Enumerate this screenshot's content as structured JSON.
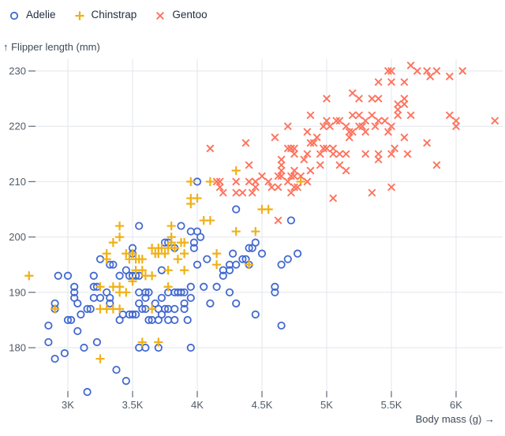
{
  "chart_data": {
    "type": "scatter",
    "title": "",
    "xlabel": "Body mass (g) →",
    "ylabel": "↑ Flipper length (mm)",
    "grid": true,
    "legend_position": "top-left",
    "xlim": [
      2700,
      6350
    ],
    "ylim": [
      172,
      232
    ],
    "x_tick_values": [
      3000,
      3500,
      4000,
      4500,
      5000,
      5500,
      6000
    ],
    "x_tick_labels": [
      "3K",
      "3.5K",
      "4K",
      "4.5K",
      "5K",
      "5.5K",
      "6K"
    ],
    "y_tick_values": [
      180,
      190,
      200,
      210,
      220,
      230
    ],
    "y_tick_labels": [
      "180",
      "190",
      "200",
      "210",
      "220",
      "230"
    ],
    "series": [
      {
        "name": "Adelie",
        "marker": "circle",
        "color": "#4269d0",
        "points": [
          [
            2850,
            184
          ],
          [
            2850,
            181
          ],
          [
            2900,
            188
          ],
          [
            2900,
            187
          ],
          [
            2900,
            178
          ],
          [
            2925,
            193
          ],
          [
            2975,
            179
          ],
          [
            3000,
            193
          ],
          [
            3000,
            185
          ],
          [
            3025,
            185
          ],
          [
            3050,
            191
          ],
          [
            3050,
            190
          ],
          [
            3050,
            189
          ],
          [
            3075,
            188
          ],
          [
            3075,
            183
          ],
          [
            3100,
            186
          ],
          [
            3125,
            180
          ],
          [
            3150,
            187
          ],
          [
            3150,
            172
          ],
          [
            3175,
            187
          ],
          [
            3200,
            193
          ],
          [
            3200,
            191
          ],
          [
            3200,
            189
          ],
          [
            3225,
            191
          ],
          [
            3225,
            181
          ],
          [
            3250,
            196
          ],
          [
            3250,
            189
          ],
          [
            3300,
            190
          ],
          [
            3325,
            195
          ],
          [
            3325,
            189
          ],
          [
            3325,
            188
          ],
          [
            3350,
            195
          ],
          [
            3375,
            176
          ],
          [
            3400,
            193
          ],
          [
            3400,
            185
          ],
          [
            3425,
            186
          ],
          [
            3450,
            194
          ],
          [
            3450,
            174
          ],
          [
            3475,
            193
          ],
          [
            3475,
            186
          ],
          [
            3500,
            198
          ],
          [
            3500,
            197
          ],
          [
            3500,
            193
          ],
          [
            3500,
            186
          ],
          [
            3525,
            193
          ],
          [
            3525,
            186
          ],
          [
            3550,
            202
          ],
          [
            3550,
            193
          ],
          [
            3550,
            190
          ],
          [
            3550,
            188
          ],
          [
            3550,
            180
          ],
          [
            3575,
            187
          ],
          [
            3600,
            190
          ],
          [
            3600,
            189
          ],
          [
            3600,
            187
          ],
          [
            3600,
            180
          ],
          [
            3625,
            190
          ],
          [
            3625,
            185
          ],
          [
            3650,
            185
          ],
          [
            3675,
            188
          ],
          [
            3700,
            187
          ],
          [
            3700,
            185
          ],
          [
            3700,
            180
          ],
          [
            3725,
            194
          ],
          [
            3725,
            189
          ],
          [
            3725,
            186
          ],
          [
            3750,
            199
          ],
          [
            3750,
            187
          ],
          [
            3775,
            199
          ],
          [
            3775,
            190
          ],
          [
            3775,
            187
          ],
          [
            3775,
            185
          ],
          [
            3825,
            198
          ],
          [
            3825,
            190
          ],
          [
            3825,
            187
          ],
          [
            3825,
            185
          ],
          [
            3850,
            190
          ],
          [
            3875,
            202
          ],
          [
            3875,
            190
          ],
          [
            3900,
            190
          ],
          [
            3900,
            188
          ],
          [
            3900,
            187
          ],
          [
            3925,
            185
          ],
          [
            3950,
            201
          ],
          [
            3950,
            191
          ],
          [
            3950,
            189
          ],
          [
            3950,
            180
          ],
          [
            3975,
            199
          ],
          [
            3975,
            198
          ],
          [
            4000,
            210
          ],
          [
            4000,
            201
          ],
          [
            4000,
            195
          ],
          [
            4025,
            200
          ],
          [
            4050,
            191
          ],
          [
            4075,
            196
          ],
          [
            4100,
            188
          ],
          [
            4150,
            191
          ],
          [
            4200,
            194
          ],
          [
            4200,
            193
          ],
          [
            4250,
            195
          ],
          [
            4250,
            194
          ],
          [
            4250,
            190
          ],
          [
            4275,
            197
          ],
          [
            4300,
            205
          ],
          [
            4300,
            195
          ],
          [
            4300,
            188
          ],
          [
            4350,
            196
          ],
          [
            4375,
            196
          ],
          [
            4400,
            198
          ],
          [
            4400,
            195
          ],
          [
            4425,
            198
          ],
          [
            4450,
            199
          ],
          [
            4450,
            186
          ],
          [
            4500,
            197
          ],
          [
            4600,
            191
          ],
          [
            4600,
            190
          ],
          [
            4650,
            195
          ],
          [
            4650,
            184
          ],
          [
            4700,
            196
          ],
          [
            4725,
            203
          ],
          [
            4775,
            197
          ]
        ]
      },
      {
        "name": "Chinstrap",
        "marker": "plus",
        "color": "#efb118",
        "points": [
          [
            2700,
            193
          ],
          [
            2900,
            187
          ],
          [
            3250,
            191
          ],
          [
            3250,
            187
          ],
          [
            3250,
            178
          ],
          [
            3300,
            197
          ],
          [
            3300,
            196
          ],
          [
            3300,
            187
          ],
          [
            3350,
            199
          ],
          [
            3350,
            191
          ],
          [
            3350,
            187
          ],
          [
            3400,
            202
          ],
          [
            3400,
            200
          ],
          [
            3400,
            191
          ],
          [
            3400,
            190
          ],
          [
            3400,
            187
          ],
          [
            3450,
            197
          ],
          [
            3450,
            190
          ],
          [
            3475,
            196
          ],
          [
            3500,
            197
          ],
          [
            3500,
            192
          ],
          [
            3525,
            196
          ],
          [
            3525,
            194
          ],
          [
            3550,
            196
          ],
          [
            3575,
            196
          ],
          [
            3575,
            194
          ],
          [
            3575,
            181
          ],
          [
            3600,
            193
          ],
          [
            3650,
            198
          ],
          [
            3650,
            193
          ],
          [
            3650,
            187
          ],
          [
            3675,
            197
          ],
          [
            3700,
            198
          ],
          [
            3700,
            197
          ],
          [
            3700,
            181
          ],
          [
            3725,
            198
          ],
          [
            3750,
            197
          ],
          [
            3775,
            198
          ],
          [
            3775,
            194
          ],
          [
            3775,
            191
          ],
          [
            3800,
            202
          ],
          [
            3800,
            200
          ],
          [
            3800,
            199
          ],
          [
            3825,
            198
          ],
          [
            3850,
            196
          ],
          [
            3875,
            199
          ],
          [
            3900,
            199
          ],
          [
            3900,
            197
          ],
          [
            3900,
            194
          ],
          [
            3950,
            210
          ],
          [
            3950,
            207
          ],
          [
            3950,
            206
          ],
          [
            4000,
            207
          ],
          [
            4050,
            203
          ],
          [
            4100,
            210
          ],
          [
            4100,
            203
          ],
          [
            4150,
            197
          ],
          [
            4150,
            195
          ],
          [
            4300,
            212
          ],
          [
            4300,
            201
          ],
          [
            4400,
            195
          ],
          [
            4450,
            201
          ],
          [
            4500,
            205
          ],
          [
            4550,
            205
          ],
          [
            4800,
            210
          ]
        ]
      },
      {
        "name": "Gentoo",
        "marker": "x",
        "color": "#ff725c",
        "points": [
          [
            4100,
            216
          ],
          [
            4150,
            210
          ],
          [
            4175,
            210
          ],
          [
            4175,
            209
          ],
          [
            4200,
            208
          ],
          [
            4300,
            210
          ],
          [
            4300,
            208
          ],
          [
            4350,
            208
          ],
          [
            4375,
            217
          ],
          [
            4400,
            213
          ],
          [
            4400,
            210
          ],
          [
            4425,
            208
          ],
          [
            4450,
            210
          ],
          [
            4450,
            209
          ],
          [
            4500,
            211
          ],
          [
            4550,
            210
          ],
          [
            4575,
            209
          ],
          [
            4600,
            218
          ],
          [
            4625,
            211
          ],
          [
            4625,
            209
          ],
          [
            4625,
            203
          ],
          [
            4650,
            214
          ],
          [
            4650,
            213
          ],
          [
            4650,
            212
          ],
          [
            4650,
            211
          ],
          [
            4700,
            220
          ],
          [
            4700,
            216
          ],
          [
            4700,
            210
          ],
          [
            4725,
            216
          ],
          [
            4725,
            211
          ],
          [
            4725,
            208
          ],
          [
            4750,
            216
          ],
          [
            4750,
            215
          ],
          [
            4750,
            212
          ],
          [
            4750,
            211
          ],
          [
            4750,
            209
          ],
          [
            4775,
            209
          ],
          [
            4800,
            211
          ],
          [
            4825,
            214
          ],
          [
            4850,
            219
          ],
          [
            4850,
            215
          ],
          [
            4850,
            210
          ],
          [
            4875,
            222
          ],
          [
            4875,
            217
          ],
          [
            4875,
            212
          ],
          [
            4900,
            217
          ],
          [
            4925,
            218
          ],
          [
            4950,
            215
          ],
          [
            4950,
            213
          ],
          [
            4975,
            220
          ],
          [
            4975,
            216
          ],
          [
            5000,
            225
          ],
          [
            5000,
            221
          ],
          [
            5000,
            216
          ],
          [
            5025,
            220
          ],
          [
            5050,
            216
          ],
          [
            5050,
            215
          ],
          [
            5050,
            207
          ],
          [
            5075,
            221
          ],
          [
            5100,
            221
          ],
          [
            5100,
            215
          ],
          [
            5100,
            213
          ],
          [
            5150,
            220
          ],
          [
            5150,
            215
          ],
          [
            5150,
            212
          ],
          [
            5175,
            219
          ],
          [
            5175,
            218
          ],
          [
            5200,
            226
          ],
          [
            5200,
            222
          ],
          [
            5200,
            219
          ],
          [
            5250,
            225
          ],
          [
            5250,
            222
          ],
          [
            5250,
            220
          ],
          [
            5275,
            220
          ],
          [
            5300,
            221
          ],
          [
            5300,
            219
          ],
          [
            5300,
            215
          ],
          [
            5350,
            225
          ],
          [
            5350,
            222
          ],
          [
            5350,
            208
          ],
          [
            5375,
            220
          ],
          [
            5400,
            228
          ],
          [
            5400,
            225
          ],
          [
            5400,
            221
          ],
          [
            5400,
            215
          ],
          [
            5400,
            214
          ],
          [
            5450,
            221
          ],
          [
            5475,
            230
          ],
          [
            5475,
            219
          ],
          [
            5500,
            230
          ],
          [
            5500,
            228
          ],
          [
            5500,
            220
          ],
          [
            5500,
            215
          ],
          [
            5500,
            209
          ],
          [
            5525,
            216
          ],
          [
            5550,
            224
          ],
          [
            5550,
            223
          ],
          [
            5550,
            222
          ],
          [
            5600,
            228
          ],
          [
            5600,
            225
          ],
          [
            5600,
            224
          ],
          [
            5600,
            218
          ],
          [
            5625,
            215
          ],
          [
            5650,
            231
          ],
          [
            5650,
            222
          ],
          [
            5700,
            230
          ],
          [
            5775,
            230
          ],
          [
            5775,
            217
          ],
          [
            5800,
            229
          ],
          [
            5850,
            230
          ],
          [
            5850,
            213
          ],
          [
            5950,
            229
          ],
          [
            5950,
            222
          ],
          [
            6000,
            221
          ],
          [
            6000,
            220
          ],
          [
            6050,
            230
          ],
          [
            6300,
            221
          ]
        ]
      }
    ]
  }
}
